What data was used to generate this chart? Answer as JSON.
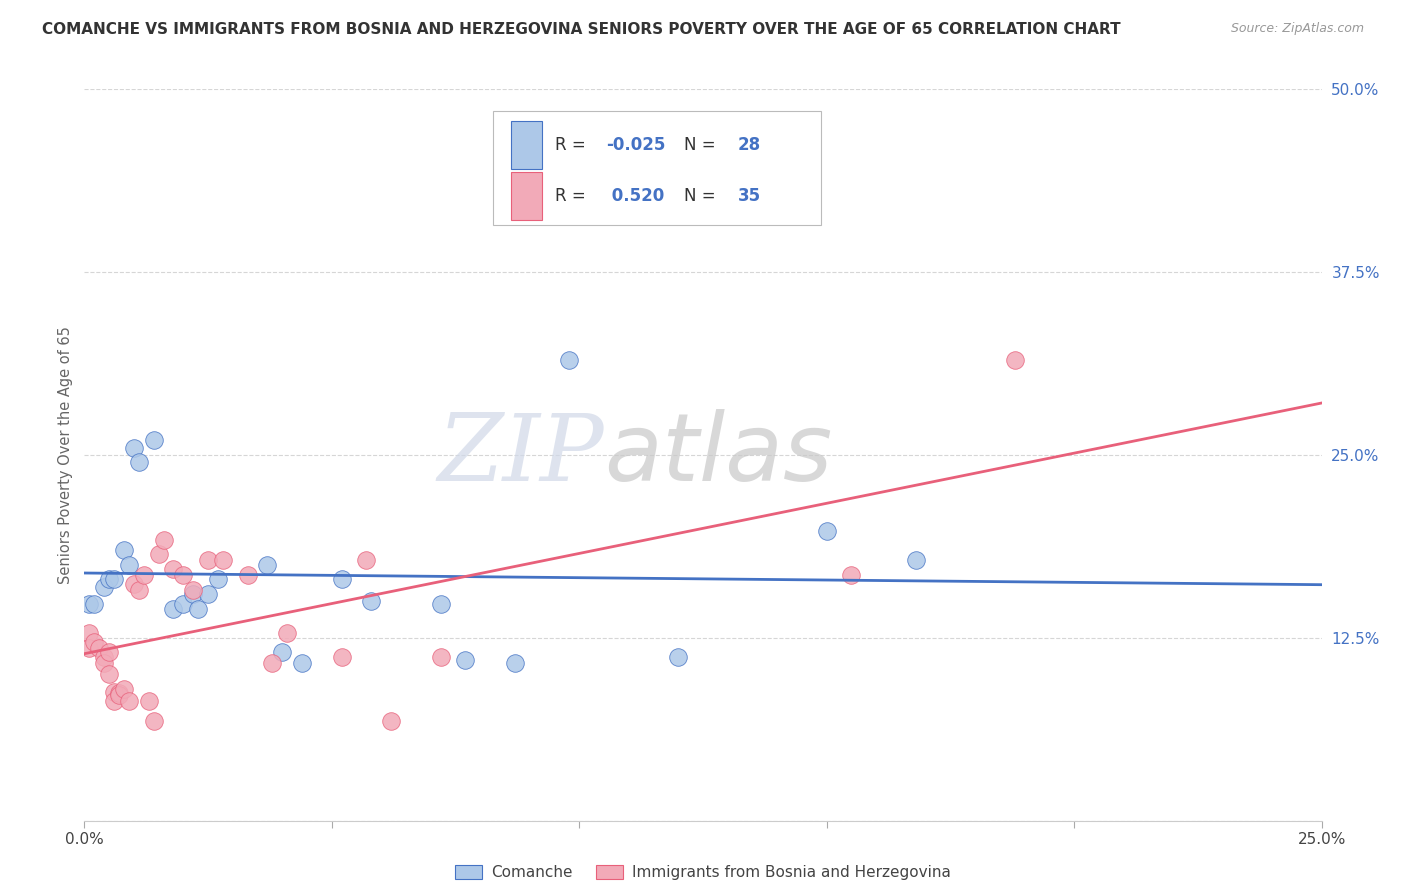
{
  "title": "COMANCHE VS IMMIGRANTS FROM BOSNIA AND HERZEGOVINA SENIORS POVERTY OVER THE AGE OF 65 CORRELATION CHART",
  "source": "Source: ZipAtlas.com",
  "ylabel": "Seniors Poverty Over the Age of 65",
  "xlim": [
    0,
    0.25
  ],
  "ylim": [
    0,
    0.5
  ],
  "blue_R": -0.025,
  "blue_N": 28,
  "pink_R": 0.52,
  "pink_N": 35,
  "blue_label": "Comanche",
  "pink_label": "Immigrants from Bosnia and Herzegovina",
  "blue_color": "#adc8e8",
  "pink_color": "#f2aab8",
  "blue_line_color": "#4472c4",
  "pink_line_color": "#e8607a",
  "watermark_zip": "ZIP",
  "watermark_atlas": "atlas",
  "blue_dots": [
    [
      0.001,
      0.148
    ],
    [
      0.002,
      0.148
    ],
    [
      0.004,
      0.16
    ],
    [
      0.005,
      0.165
    ],
    [
      0.006,
      0.165
    ],
    [
      0.008,
      0.185
    ],
    [
      0.009,
      0.175
    ],
    [
      0.01,
      0.255
    ],
    [
      0.011,
      0.245
    ],
    [
      0.014,
      0.26
    ],
    [
      0.018,
      0.145
    ],
    [
      0.02,
      0.148
    ],
    [
      0.022,
      0.155
    ],
    [
      0.023,
      0.145
    ],
    [
      0.025,
      0.155
    ],
    [
      0.027,
      0.165
    ],
    [
      0.037,
      0.175
    ],
    [
      0.04,
      0.115
    ],
    [
      0.044,
      0.108
    ],
    [
      0.052,
      0.165
    ],
    [
      0.058,
      0.15
    ],
    [
      0.072,
      0.148
    ],
    [
      0.077,
      0.11
    ],
    [
      0.087,
      0.108
    ],
    [
      0.098,
      0.315
    ],
    [
      0.12,
      0.112
    ],
    [
      0.15,
      0.198
    ],
    [
      0.168,
      0.178
    ]
  ],
  "pink_dots": [
    [
      0.001,
      0.128
    ],
    [
      0.001,
      0.118
    ],
    [
      0.002,
      0.122
    ],
    [
      0.003,
      0.118
    ],
    [
      0.004,
      0.112
    ],
    [
      0.004,
      0.108
    ],
    [
      0.005,
      0.1
    ],
    [
      0.005,
      0.115
    ],
    [
      0.006,
      0.088
    ],
    [
      0.006,
      0.082
    ],
    [
      0.007,
      0.087
    ],
    [
      0.007,
      0.086
    ],
    [
      0.008,
      0.09
    ],
    [
      0.009,
      0.082
    ],
    [
      0.01,
      0.162
    ],
    [
      0.011,
      0.158
    ],
    [
      0.012,
      0.168
    ],
    [
      0.013,
      0.082
    ],
    [
      0.014,
      0.068
    ],
    [
      0.015,
      0.182
    ],
    [
      0.016,
      0.192
    ],
    [
      0.018,
      0.172
    ],
    [
      0.02,
      0.168
    ],
    [
      0.022,
      0.158
    ],
    [
      0.025,
      0.178
    ],
    [
      0.028,
      0.178
    ],
    [
      0.033,
      0.168
    ],
    [
      0.038,
      0.108
    ],
    [
      0.041,
      0.128
    ],
    [
      0.052,
      0.112
    ],
    [
      0.057,
      0.178
    ],
    [
      0.062,
      0.068
    ],
    [
      0.072,
      0.112
    ],
    [
      0.155,
      0.168
    ],
    [
      0.188,
      0.315
    ]
  ]
}
